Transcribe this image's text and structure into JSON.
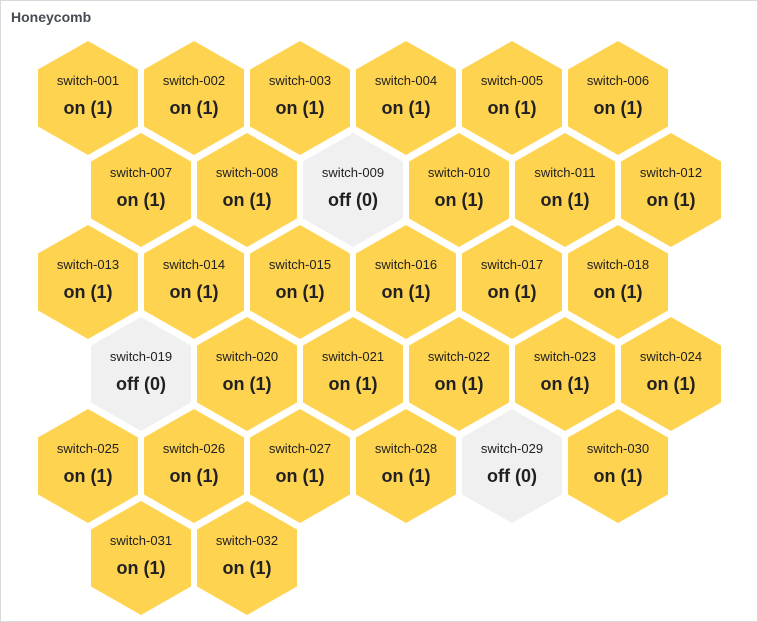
{
  "panel": {
    "title": "Honeycomb"
  },
  "colors": {
    "on": "#fdd34f",
    "off": "#f0f0f0"
  },
  "hexagons": [
    {
      "name": "switch-001",
      "value": "on (1)",
      "state": "on"
    },
    {
      "name": "switch-002",
      "value": "on (1)",
      "state": "on"
    },
    {
      "name": "switch-003",
      "value": "on (1)",
      "state": "on"
    },
    {
      "name": "switch-004",
      "value": "on (1)",
      "state": "on"
    },
    {
      "name": "switch-005",
      "value": "on (1)",
      "state": "on"
    },
    {
      "name": "switch-006",
      "value": "on (1)",
      "state": "on"
    },
    {
      "name": "switch-007",
      "value": "on (1)",
      "state": "on"
    },
    {
      "name": "switch-008",
      "value": "on (1)",
      "state": "on"
    },
    {
      "name": "switch-009",
      "value": "off (0)",
      "state": "off"
    },
    {
      "name": "switch-010",
      "value": "on (1)",
      "state": "on"
    },
    {
      "name": "switch-011",
      "value": "on (1)",
      "state": "on"
    },
    {
      "name": "switch-012",
      "value": "on (1)",
      "state": "on"
    },
    {
      "name": "switch-013",
      "value": "on (1)",
      "state": "on"
    },
    {
      "name": "switch-014",
      "value": "on (1)",
      "state": "on"
    },
    {
      "name": "switch-015",
      "value": "on (1)",
      "state": "on"
    },
    {
      "name": "switch-016",
      "value": "on (1)",
      "state": "on"
    },
    {
      "name": "switch-017",
      "value": "on (1)",
      "state": "on"
    },
    {
      "name": "switch-018",
      "value": "on (1)",
      "state": "on"
    },
    {
      "name": "switch-019",
      "value": "off (0)",
      "state": "off"
    },
    {
      "name": "switch-020",
      "value": "on (1)",
      "state": "on"
    },
    {
      "name": "switch-021",
      "value": "on (1)",
      "state": "on"
    },
    {
      "name": "switch-022",
      "value": "on (1)",
      "state": "on"
    },
    {
      "name": "switch-023",
      "value": "on (1)",
      "state": "on"
    },
    {
      "name": "switch-024",
      "value": "on (1)",
      "state": "on"
    },
    {
      "name": "switch-025",
      "value": "on (1)",
      "state": "on"
    },
    {
      "name": "switch-026",
      "value": "on (1)",
      "state": "on"
    },
    {
      "name": "switch-027",
      "value": "on (1)",
      "state": "on"
    },
    {
      "name": "switch-028",
      "value": "on (1)",
      "state": "on"
    },
    {
      "name": "switch-029",
      "value": "off (0)",
      "state": "off"
    },
    {
      "name": "switch-030",
      "value": "on (1)",
      "state": "on"
    },
    {
      "name": "switch-031",
      "value": "on (1)",
      "state": "on"
    },
    {
      "name": "switch-032",
      "value": "on (1)",
      "state": "on"
    }
  ]
}
